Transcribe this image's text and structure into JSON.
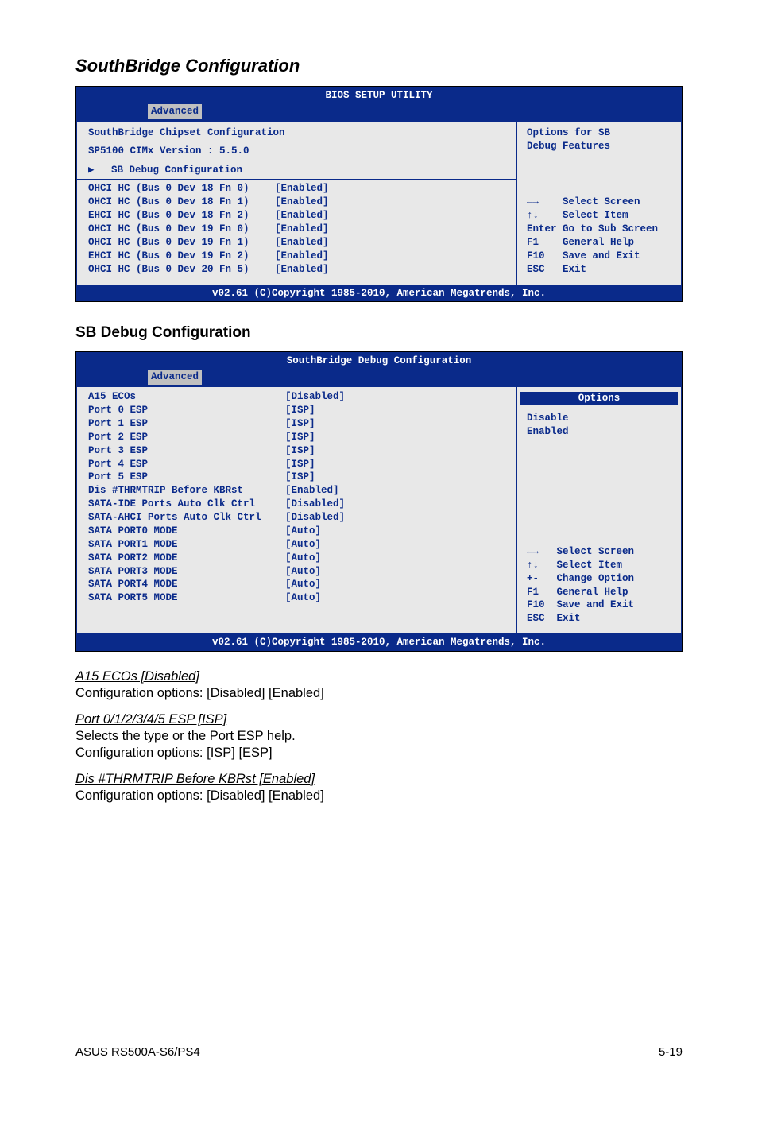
{
  "section1_title": "SouthBridge Configuration",
  "bios1": {
    "title": "BIOS SETUP UTILITY",
    "tab": "Advanced",
    "header": "SouthBridge Chipset Configuration",
    "version": "SP5100 CIMx Version : 5.5.0",
    "submenu": "SB Debug Configuration",
    "rows": [
      {
        "label": "OHCI HC (Bus 0 Dev 18 Fn 0)",
        "value": "[Enabled]"
      },
      {
        "label": "OHCI HC (Bus 0 Dev 18 Fn 1)",
        "value": "[Enabled]"
      },
      {
        "label": "EHCI HC (Bus 0 Dev 18 Fn 2)",
        "value": "[Enabled]"
      },
      {
        "label": "OHCI HC (Bus 0 Dev 19 Fn 0)",
        "value": "[Enabled]"
      },
      {
        "label": "OHCI HC (Bus 0 Dev 19 Fn 1)",
        "value": "[Enabled]"
      },
      {
        "label": "EHCI HC (Bus 0 Dev 19 Fn 2)",
        "value": "[Enabled]"
      },
      {
        "label": "OHCI HC (Bus 0 Dev 20 Fn 5)",
        "value": "[Enabled]"
      }
    ],
    "opt1": "Options for SB",
    "opt2": "Debug Features",
    "nav": [
      "←→    Select Screen",
      "↑↓    Select Item",
      "Enter Go to Sub Screen",
      "F1    General Help",
      "F10   Save and Exit",
      "ESC   Exit"
    ],
    "footer": "v02.61 (C)Copyright 1985-2010, American Megatrends, Inc."
  },
  "section2_title": "SB Debug Configuration",
  "bios2": {
    "title": "SouthBridge Debug Configuration",
    "tab": "Advanced",
    "rows": [
      {
        "label": "A15 ECOs",
        "value": "[Disabled]"
      },
      {
        "label": "Port 0 ESP",
        "value": "[ISP]"
      },
      {
        "label": "Port 1 ESP",
        "value": "[ISP]"
      },
      {
        "label": "Port 2 ESP",
        "value": "[ISP]"
      },
      {
        "label": "Port 3 ESP",
        "value": "[ISP]"
      },
      {
        "label": "Port 4 ESP",
        "value": "[ISP]"
      },
      {
        "label": "Port 5 ESP",
        "value": "[ISP]"
      },
      {
        "label": "Dis #THRMTRIP Before KBRst",
        "value": "[Enabled]"
      },
      {
        "label": "SATA-IDE Ports Auto Clk Ctrl",
        "value": "[Disabled]"
      },
      {
        "label": "SATA-AHCI Ports Auto Clk Ctrl",
        "value": "[Disabled]"
      },
      {
        "label": "SATA PORT0 MODE",
        "value": "[Auto]"
      },
      {
        "label": "SATA PORT1 MODE",
        "value": "[Auto]"
      },
      {
        "label": "SATA PORT2 MODE",
        "value": "[Auto]"
      },
      {
        "label": "SATA PORT3 MODE",
        "value": "[Auto]"
      },
      {
        "label": "SATA PORT4 MODE",
        "value": "[Auto]"
      },
      {
        "label": "SATA PORT5 MODE",
        "value": "[Auto]"
      }
    ],
    "opthead": "Options",
    "opt1": "Disable",
    "opt2": "Enabled",
    "nav": [
      "←→   Select Screen",
      "↑↓   Select Item",
      "+-   Change Option",
      "F1   General Help",
      "F10  Save and Exit",
      "ESC  Exit"
    ],
    "footer": "v02.61 (C)Copyright 1985-2010, American Megatrends, Inc."
  },
  "body": {
    "t1": "A15 ECOs [Disabled]",
    "p1": "Configuration options: [Disabled] [Enabled]",
    "t2": "Port 0/1/2/3/4/5 ESP [ISP]",
    "p2a": "Selects the type or the Port ESP help.",
    "p2b": "Configuration options: [ISP] [ESP]",
    "t3": "Dis #THRMTRIP Before KBRst [Enabled]",
    "p3": "Configuration options: [Disabled] [Enabled]"
  },
  "footer_left": "ASUS RS500A-S6/PS4",
  "footer_right": "5-19"
}
